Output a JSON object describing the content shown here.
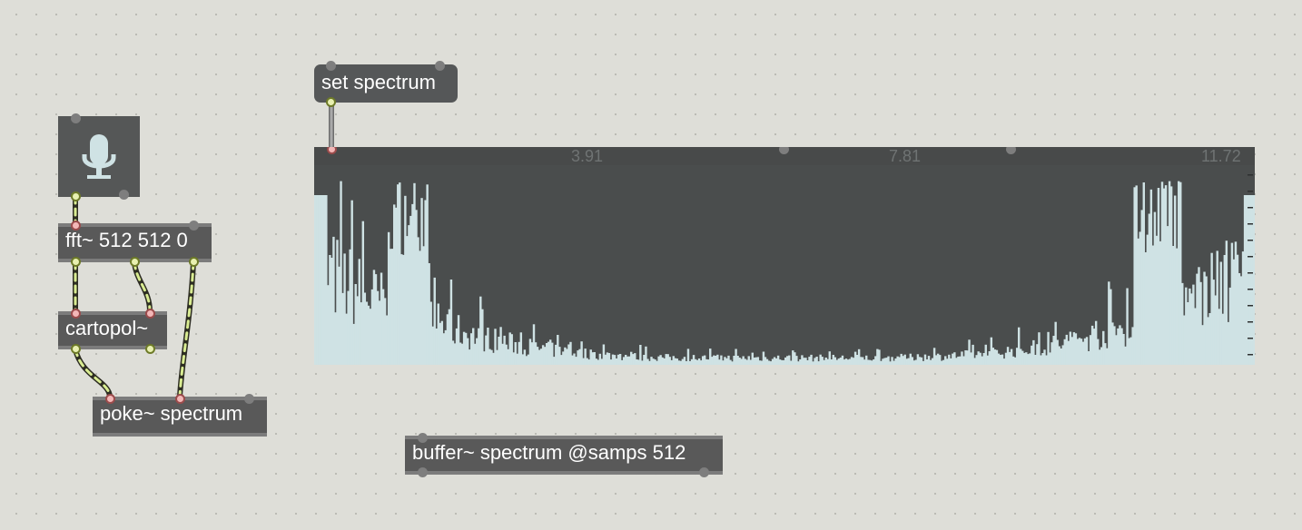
{
  "objects": {
    "fft": "fft~ 512 512 0",
    "cartopol": "cartopol~",
    "poke": "poke~ spectrum",
    "buffer": "buffer~ spectrum @samps 512"
  },
  "message": {
    "set_spectrum": "set spectrum"
  },
  "ezadc": {
    "icon": "microphone-icon"
  },
  "plotter": {
    "ruler_labels": [
      "3.91",
      "7.81",
      "11.72"
    ],
    "bar_color": "#cfe2e4",
    "background_color": "#4a4d4d",
    "bins": 512
  },
  "colors": {
    "canvas": "#deded8",
    "object": "#595959",
    "signal_cable": "#d2e58e"
  }
}
